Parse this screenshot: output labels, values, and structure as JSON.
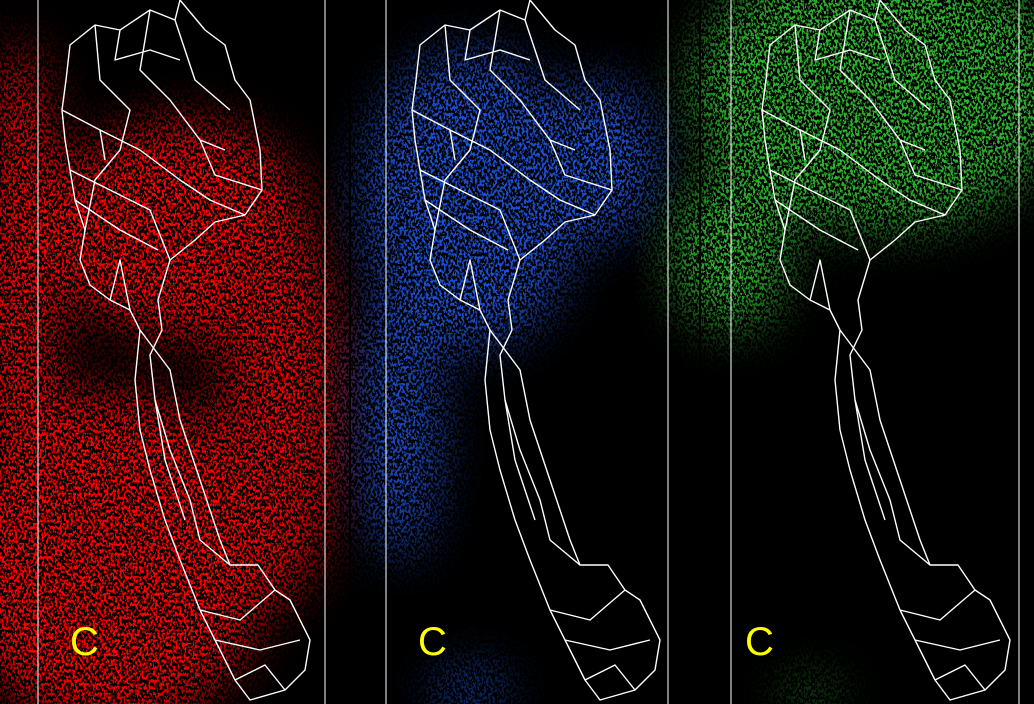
{
  "panels": [
    {
      "label": "C"
    },
    {
      "label": "C"
    },
    {
      "label": "C"
    }
  ]
}
